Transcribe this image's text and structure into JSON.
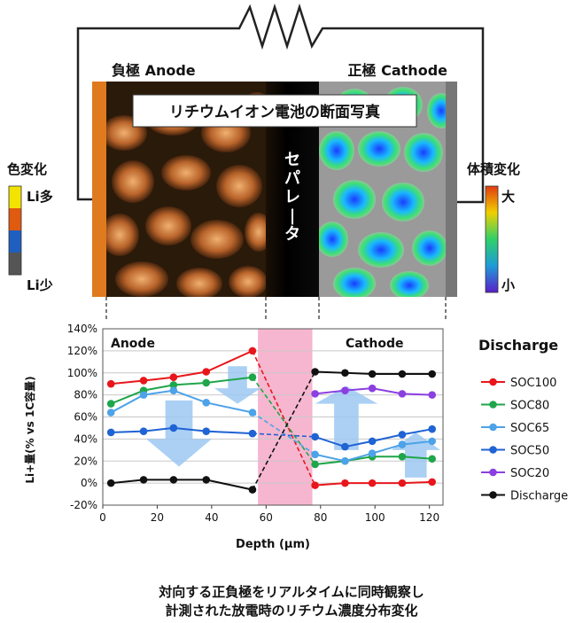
{
  "diagram": {
    "anode_label": "負極 Anode",
    "cathode_label": "正極 Cathode",
    "image_title": "リチウムイオン電池の断面写真",
    "separator_label": "セパレータ",
    "left_scale": {
      "title": "色変化",
      "top_label": "Li多",
      "bottom_label": "Li少",
      "colors": [
        "#f2e300",
        "#e05a10",
        "#1f5fbf",
        "#555555"
      ]
    },
    "right_scale": {
      "title": "体積変化",
      "top_label": "大",
      "bottom_label": "小",
      "colors": [
        "#e23a12",
        "#f0d000",
        "#2fd06a",
        "#1f9bd8",
        "#5a1fc8"
      ]
    }
  },
  "chart_data": {
    "type": "line",
    "xlabel": "Depth (μm)",
    "ylabel": "Li+量(% vs 1C容量)",
    "xlim": [
      0,
      125
    ],
    "ylim": [
      -20,
      140
    ],
    "xticks": [
      0,
      20,
      40,
      60,
      80,
      100,
      120
    ],
    "yticks": [
      -20,
      0,
      20,
      40,
      60,
      80,
      100,
      120,
      140
    ],
    "x_tick_labels": [
      "0",
      "20",
      "40",
      "60",
      "80",
      "100",
      "120"
    ],
    "y_tick_labels": [
      "-20%",
      "0%",
      "20%",
      "40%",
      "60%",
      "80%",
      "100%",
      "120%",
      "140%"
    ],
    "separator_range": [
      57,
      77
    ],
    "region_labels": {
      "anode": "Anode",
      "cathode": "Cathode"
    },
    "legend_title": "Discharge",
    "grid": true,
    "legend_position": "right",
    "anode_x": [
      3,
      15,
      26,
      38,
      55
    ],
    "cathode_x": [
      78,
      89,
      99,
      110,
      121
    ],
    "series": [
      {
        "name": "SOC100",
        "color": "#e8161b",
        "anode": [
          90,
          93,
          96,
          101,
          120
        ],
        "cathode": [
          -2,
          0,
          0,
          0,
          1
        ]
      },
      {
        "name": "SOC80",
        "color": "#1fa64a",
        "anode": [
          72,
          84,
          89,
          91,
          96
        ],
        "cathode": [
          17,
          20,
          24,
          24,
          22
        ]
      },
      {
        "name": "SOC65",
        "color": "#4da2e8",
        "anode": [
          64,
          80,
          84,
          73,
          64
        ],
        "cathode": [
          26,
          20,
          27,
          35,
          38
        ]
      },
      {
        "name": "SOC50",
        "color": "#1f63d4",
        "anode": [
          46,
          47,
          50,
          47,
          45
        ],
        "cathode": [
          42,
          33,
          38,
          44,
          49
        ]
      },
      {
        "name": "SOC20",
        "color": "#8b3fe0",
        "anode": [],
        "cathode": [
          81,
          84,
          86,
          81,
          80
        ]
      },
      {
        "name": "Discharge",
        "color": "#111111",
        "anode": [
          0,
          3,
          3,
          3,
          -6
        ],
        "cathode": [
          101,
          100,
          99,
          99,
          99
        ]
      }
    ]
  },
  "caption": {
    "line1": "対向する正負極をリアルタイムに同時観察し",
    "line2": "計測された放電時のリチウム濃度分布変化"
  }
}
